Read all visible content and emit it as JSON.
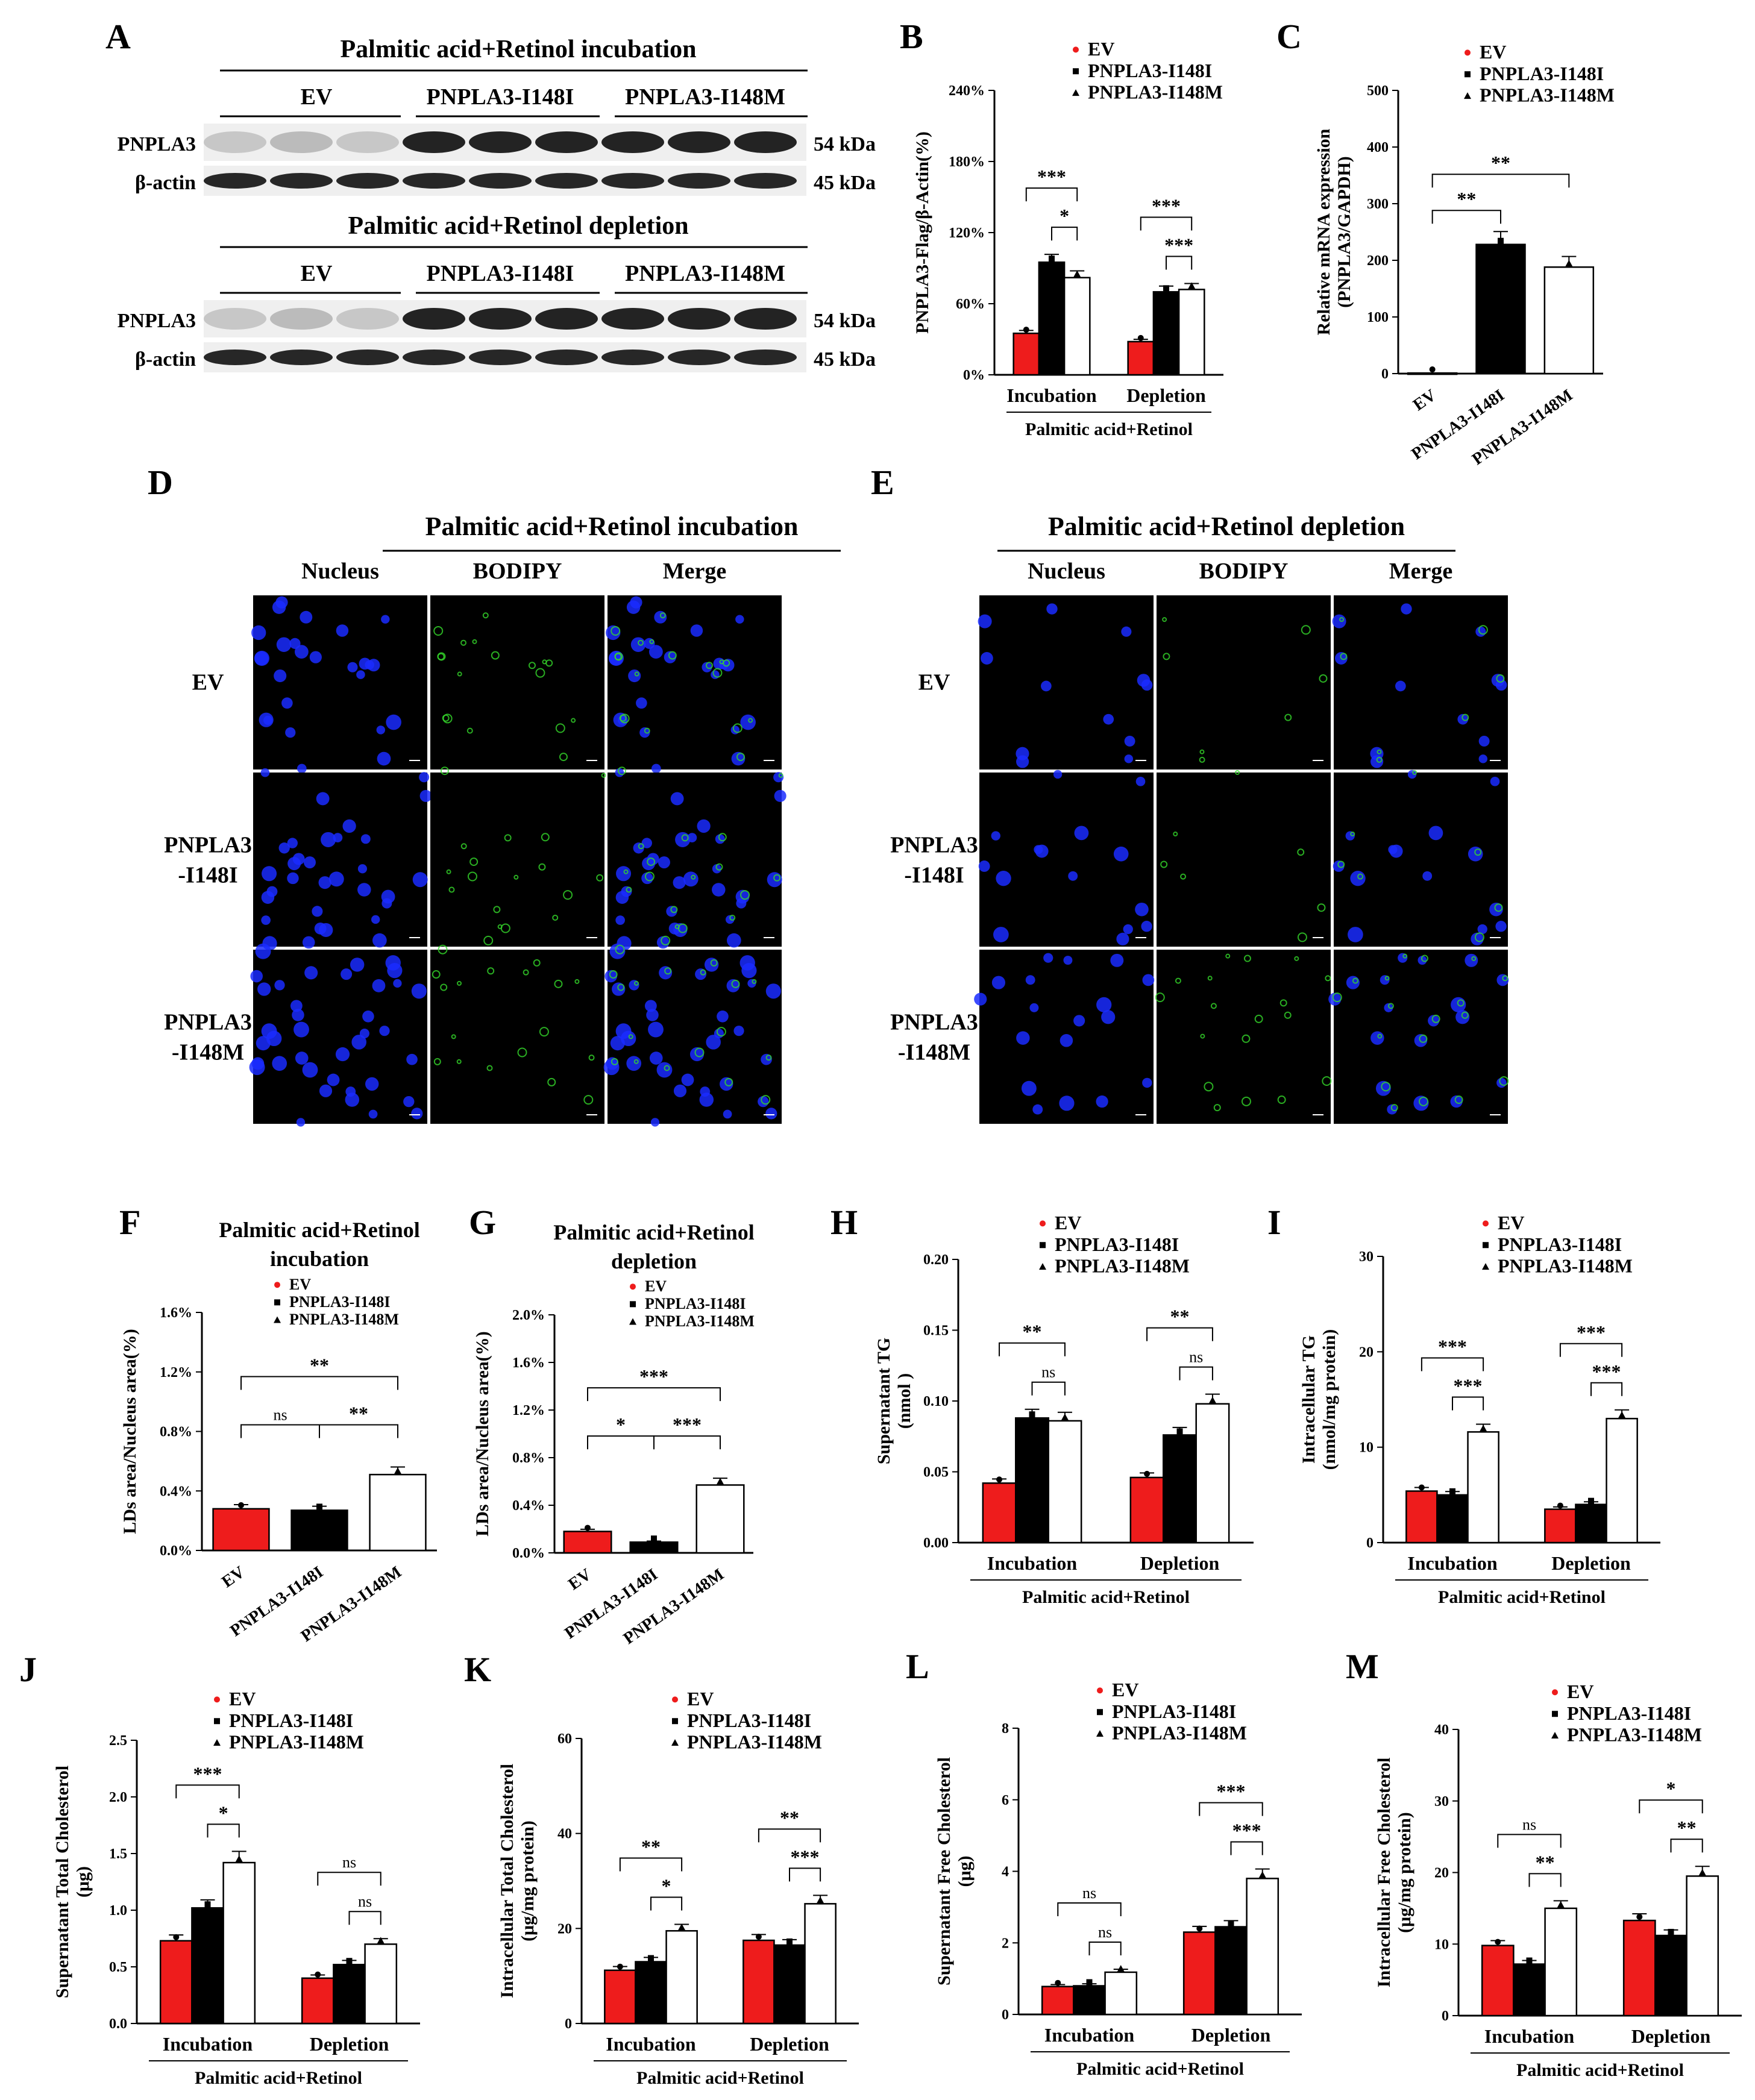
{
  "colors": {
    "ev": "#ee1c1c",
    "i148i": "#000000",
    "i148m": "#ffffff",
    "blue_nuclei": "#1a2cff",
    "green_ld": "#35d92b"
  },
  "panel_letters": [
    "A",
    "B",
    "C",
    "D",
    "E",
    "F",
    "G",
    "H",
    "I",
    "J",
    "K",
    "L",
    "M"
  ],
  "panel_a": {
    "top_title": "Palmitic acid+Retinol incubation",
    "bottom_title": "Palmitic acid+Retinol depletion",
    "groups": [
      "EV",
      "PNPLA3-I148I",
      "PNPLA3-I148M"
    ],
    "rows": [
      "PNPLA3",
      "β-actin"
    ],
    "sizes": [
      "54 kDa",
      "45 kDa"
    ]
  },
  "panel_d": {
    "title": "Palmitic acid+Retinol incubation",
    "columns": [
      "Nucleus",
      "BODIPY",
      "Merge"
    ],
    "rows": [
      "EV",
      "PNPLA3\n-I148I",
      "PNPLA3\n-I148M"
    ]
  },
  "panel_e": {
    "title": "Palmitic acid+Retinol depletion",
    "columns": [
      "Nucleus",
      "BODIPY",
      "Merge"
    ],
    "rows": [
      "EV",
      "PNPLA3\n-I148I",
      "PNPLA3\n-I148M"
    ]
  },
  "chart_data": [
    {
      "id": "B",
      "type": "bar",
      "title": "",
      "ylabel": "PNPLA3-Flag/β-Actin(%)",
      "xlabel": "Palmitic acid+Retinol",
      "categories": [
        "Incubation",
        "Depletion"
      ],
      "yticks": [
        "0%",
        "60%",
        "120%",
        "180%",
        "240%"
      ],
      "ylim": [
        0,
        240
      ],
      "series": [
        {
          "name": "EV",
          "values": [
            35,
            28
          ]
        },
        {
          "name": "PNPLA3-I148I",
          "values": [
            95,
            70
          ]
        },
        {
          "name": "PNPLA3-I148M",
          "values": [
            82,
            72
          ]
        }
      ],
      "legend": [
        "EV",
        "PNPLA3-I148I",
        "PNPLA3-I148M"
      ],
      "annotations": [
        "***",
        "*",
        "***",
        "***",
        "***",
        "***"
      ]
    },
    {
      "id": "C",
      "type": "bar",
      "title": "",
      "ylabel": "Relative mRNA expression\n(PNPLA3/GAPDH)",
      "xlabel": "",
      "categories": [
        "EV",
        "PNPLA3-I148I",
        "PNPLA3-I148M"
      ],
      "yticks": [
        "0",
        "100",
        "200",
        "300",
        "400",
        "500"
      ],
      "ylim": [
        0,
        500
      ],
      "values": [
        1,
        228,
        188
      ],
      "legend": [
        "EV",
        "PNPLA3-I148I",
        "PNPLA3-I148M"
      ],
      "annotations": [
        "**",
        "**"
      ]
    },
    {
      "id": "F",
      "type": "bar",
      "title": "Palmitic acid+Retinol\nincubation",
      "ylabel": "LDs area/Nucleus area(%)",
      "xlabel": "",
      "categories": [
        "EV",
        "PNPLA3-I148I",
        "PNPLA3-I148M"
      ],
      "yticks": [
        "0.0%",
        "0.4%",
        "0.8%",
        "1.2%",
        "1.6%"
      ],
      "ylim": [
        0,
        1.6
      ],
      "values": [
        0.28,
        0.27,
        0.51
      ],
      "legend": [
        "EV",
        "PNPLA3-I148I",
        "PNPLA3-I148M"
      ],
      "annotations": [
        "**",
        "ns",
        "**"
      ]
    },
    {
      "id": "G",
      "type": "bar",
      "title": "Palmitic acid+Retinol\ndepletion",
      "ylabel": "LDs area/Nucleus area(%)",
      "xlabel": "",
      "categories": [
        "EV",
        "PNPLA3-I148I",
        "PNPLA3-I148M"
      ],
      "yticks": [
        "0.0%",
        "0.4%",
        "0.8%",
        "1.2%",
        "1.6%",
        "2.0%"
      ],
      "ylim": [
        0,
        2.0
      ],
      "values": [
        0.18,
        0.09,
        0.57
      ],
      "legend": [
        "EV",
        "PNPLA3-I148I",
        "PNPLA3-I148M"
      ],
      "annotations": [
        "***",
        "*",
        "***"
      ]
    },
    {
      "id": "H",
      "type": "bar",
      "title": "",
      "ylabel": "Supernatant TG\n(nmol )",
      "xlabel": "Palmitic acid+Retinol",
      "categories": [
        "Incubation",
        "Depletion"
      ],
      "yticks": [
        "0.00",
        "0.05",
        "0.10",
        "0.15",
        "0.20"
      ],
      "ylim": [
        0,
        0.2
      ],
      "series": [
        {
          "name": "EV",
          "values": [
            0.042,
            0.046
          ]
        },
        {
          "name": "PNPLA3-I148I",
          "values": [
            0.088,
            0.076
          ]
        },
        {
          "name": "PNPLA3-I148M",
          "values": [
            0.086,
            0.098
          ]
        }
      ],
      "legend": [
        "EV",
        "PNPLA3-I148I",
        "PNPLA3-I148M"
      ],
      "annotations": [
        "**",
        "ns",
        "**",
        "ns"
      ]
    },
    {
      "id": "I",
      "type": "bar",
      "title": "",
      "ylabel": "Intracellular TG\n(nmol/mg protein)",
      "xlabel": "Palmitic acid+Retinol",
      "categories": [
        "Incubation",
        "Depletion"
      ],
      "yticks": [
        "0",
        "10",
        "20",
        "30"
      ],
      "ylim": [
        0,
        30
      ],
      "series": [
        {
          "name": "EV",
          "values": [
            5.4,
            3.5
          ]
        },
        {
          "name": "PNPLA3-I148I",
          "values": [
            5.0,
            4.0
          ]
        },
        {
          "name": "PNPLA3-I148M",
          "values": [
            11.6,
            13.0
          ]
        }
      ],
      "legend": [
        "EV",
        "PNPLA3-I148I",
        "PNPLA3-I148M"
      ],
      "annotations": [
        "***",
        "***",
        "***",
        "***"
      ]
    },
    {
      "id": "J",
      "type": "bar",
      "title": "",
      "ylabel": "Supernatant Total Cholesterol\n(μg)",
      "xlabel": "Palmitic acid+Retinol",
      "categories": [
        "Incubation",
        "Depletion"
      ],
      "yticks": [
        "0.0",
        "0.5",
        "1.0",
        "1.5",
        "2.0",
        "2.5"
      ],
      "ylim": [
        0,
        2.5
      ],
      "series": [
        {
          "name": "EV",
          "values": [
            0.73,
            0.4
          ]
        },
        {
          "name": "PNPLA3-I148I",
          "values": [
            1.02,
            0.52
          ]
        },
        {
          "name": "PNPLA3-I148M",
          "values": [
            1.42,
            0.7
          ]
        }
      ],
      "legend": [
        "EV",
        "PNPLA3-I148I",
        "PNPLA3-I148M"
      ],
      "annotations": [
        "***",
        "*",
        "ns",
        "ns"
      ]
    },
    {
      "id": "K",
      "type": "bar",
      "title": "",
      "ylabel": "Intracellular  Total Cholesterol\n(μg/mg protein)",
      "xlabel": "Palmitic acid+Retinol",
      "categories": [
        "Incubation",
        "Depletion"
      ],
      "yticks": [
        "0",
        "20",
        "40",
        "60"
      ],
      "ylim": [
        0,
        60
      ],
      "series": [
        {
          "name": "EV",
          "values": [
            11.2,
            17.5
          ]
        },
        {
          "name": "PNPLA3-I148I",
          "values": [
            13.0,
            16.5
          ]
        },
        {
          "name": "PNPLA3-I148M",
          "values": [
            19.5,
            25.2
          ]
        }
      ],
      "legend": [
        "EV",
        "PNPLA3-I148I",
        "PNPLA3-I148M"
      ],
      "annotations": [
        "**",
        "*",
        "**",
        "***"
      ]
    },
    {
      "id": "L",
      "type": "bar",
      "title": "",
      "ylabel": "Supernatant Free Cholesterol\n(μg)",
      "xlabel": "Palmitic acid+Retinol",
      "categories": [
        "Incubation",
        "Depletion"
      ],
      "yticks": [
        "0",
        "2",
        "4",
        "6",
        "8"
      ],
      "ylim": [
        0,
        8
      ],
      "series": [
        {
          "name": "EV",
          "values": [
            0.78,
            2.3
          ]
        },
        {
          "name": "PNPLA3-I148I",
          "values": [
            0.8,
            2.45
          ]
        },
        {
          "name": "PNPLA3-I148M",
          "values": [
            1.18,
            3.8
          ]
        }
      ],
      "legend": [
        "EV",
        "PNPLA3-I148I",
        "PNPLA3-I148M"
      ],
      "annotations": [
        "ns",
        "ns",
        "***",
        "***"
      ]
    },
    {
      "id": "M",
      "type": "bar",
      "title": "",
      "ylabel": "Intracellular Free Cholesterol\n(μg/mg protein)",
      "xlabel": "Palmitic acid+Retinol",
      "categories": [
        "Incubation",
        "Depletion"
      ],
      "yticks": [
        "0",
        "10",
        "20",
        "30",
        "40"
      ],
      "ylim": [
        0,
        40
      ],
      "series": [
        {
          "name": "EV",
          "values": [
            9.8,
            13.3
          ]
        },
        {
          "name": "PNPLA3-I148I",
          "values": [
            7.2,
            11.2
          ]
        },
        {
          "name": "PNPLA3-I148M",
          "values": [
            15.0,
            19.5
          ]
        }
      ],
      "legend": [
        "EV",
        "PNPLA3-I148I",
        "PNPLA3-I148M"
      ],
      "annotations": [
        "ns",
        "**",
        "*",
        "**"
      ]
    }
  ]
}
